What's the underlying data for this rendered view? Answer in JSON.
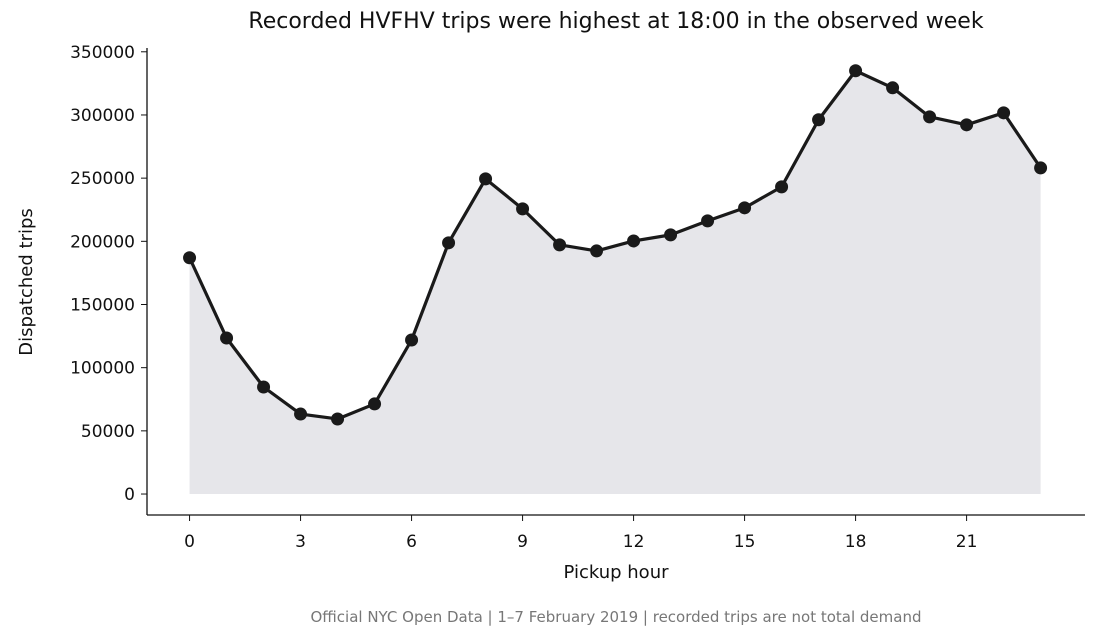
{
  "chart_data": {
    "type": "line",
    "title": "Recorded HVFHV trips were highest at 18:00 in the observed week",
    "x_label": "Pickup hour",
    "y_label": "Dispatched trips",
    "note": "Official NYC Open Data | 1–7 February 2019 | recorded trips are not total demand",
    "x": [
      0,
      1,
      2,
      3,
      4,
      5,
      6,
      7,
      8,
      9,
      10,
      11,
      12,
      13,
      14,
      15,
      16,
      17,
      18,
      19,
      20,
      21,
      22,
      23
    ],
    "series": [
      {
        "name": "Dispatched trips",
        "color": "#1a1a1a",
        "fill": "#e6e6ea",
        "values": [
          187000,
          123500,
          84700,
          63300,
          59400,
          71300,
          121900,
          198800,
          249400,
          225700,
          197200,
          192400,
          200300,
          205100,
          216200,
          226500,
          243100,
          296200,
          335000,
          321500,
          298500,
          292200,
          301700,
          258100
        ]
      }
    ],
    "xlim": [
      -1.15,
      24.2
    ],
    "xticks": [
      0,
      3,
      6,
      9,
      12,
      15,
      18,
      21
    ],
    "ylim": [
      -16600,
      353000
    ],
    "yticks": [
      0,
      50000,
      100000,
      150000,
      200000,
      250000,
      300000,
      350000
    ],
    "grid": false
  }
}
